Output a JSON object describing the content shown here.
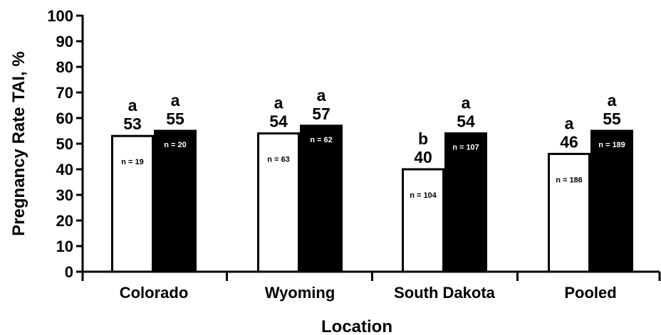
{
  "chart_data": {
    "type": "bar",
    "title": "",
    "xlabel": "Location",
    "ylabel": "Pregnancy Rate TAI, %",
    "ylim": [
      0,
      100
    ],
    "yticks": [
      0,
      10,
      20,
      30,
      40,
      50,
      60,
      70,
      80,
      90,
      100
    ],
    "grid": false,
    "categories": [
      "Colorado",
      "Wyoming",
      "South Dakota",
      "Pooled"
    ],
    "series": [
      {
        "fill": "#ffffff",
        "values": [
          53,
          54,
          40,
          46
        ],
        "letters": [
          "a",
          "a",
          "b",
          "a"
        ],
        "n_labels": [
          "n = 19",
          "n = 63",
          "n = 104",
          "n = 186"
        ]
      },
      {
        "fill": "#000000",
        "values": [
          55,
          57,
          54,
          55
        ],
        "letters": [
          "a",
          "a",
          "a",
          "a"
        ],
        "n_labels": [
          "n = 20",
          "n = 62",
          "n = 107",
          "n = 189"
        ]
      }
    ]
  }
}
